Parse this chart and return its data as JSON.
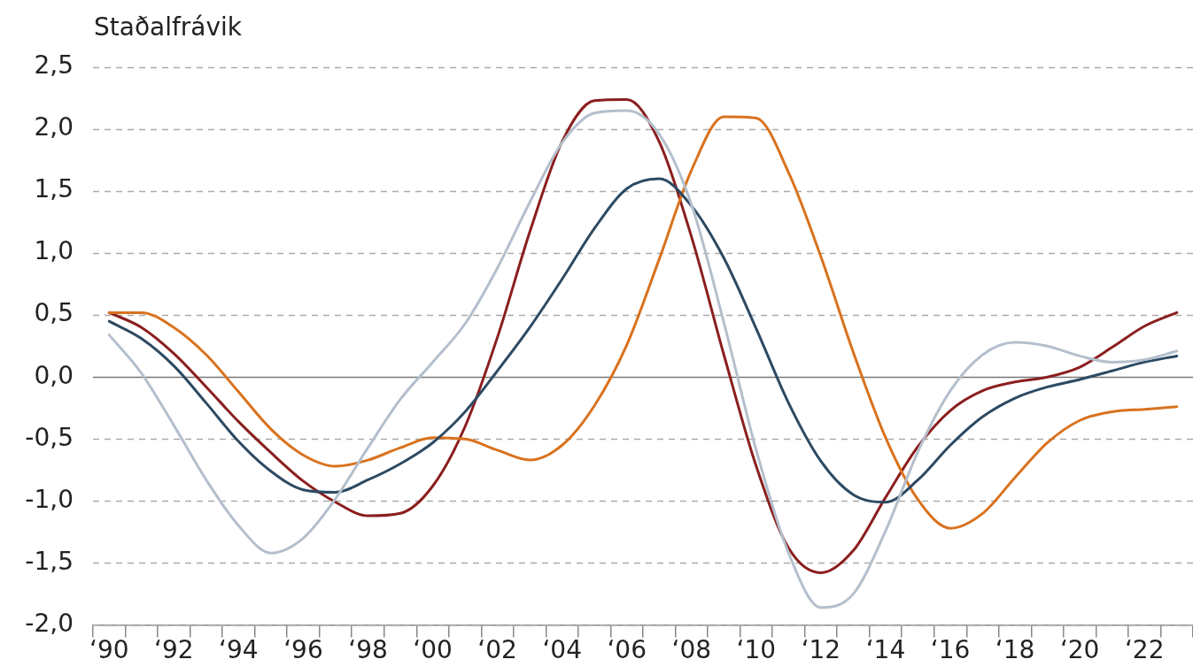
{
  "chart_data": {
    "type": "line",
    "ylabel": "Staðalfrávik",
    "categories": [
      "‘90",
      null,
      "‘92",
      null,
      "‘94",
      null,
      "‘96",
      null,
      "‘98",
      null,
      "‘00",
      null,
      "‘02",
      null,
      "‘04",
      null,
      "‘06",
      null,
      "‘08",
      null,
      "‘10",
      null,
      "‘12",
      null,
      "‘14",
      null,
      "‘16",
      null,
      "‘18",
      null,
      "‘20",
      null,
      "‘22",
      null
    ],
    "series": [
      {
        "color": "#b4bfcc",
        "values": [
          0.34,
          0.03,
          -0.39,
          -0.83,
          -1.2,
          -1.42,
          -1.3,
          -0.98,
          -0.57,
          -0.18,
          0.12,
          0.43,
          0.88,
          1.41,
          1.89,
          2.13,
          2.15,
          1.96,
          1.39,
          0.44,
          -0.59,
          -1.42,
          -1.86,
          -1.75,
          -1.24,
          -0.6,
          -0.11,
          0.18,
          0.28,
          0.25,
          0.17,
          0.12,
          0.14,
          0.21
        ]
      },
      {
        "color": "#2c4a63",
        "values": [
          0.45,
          0.31,
          0.09,
          -0.21,
          -0.52,
          -0.76,
          -0.91,
          -0.93,
          -0.83,
          -0.7,
          -0.53,
          -0.28,
          0.05,
          0.4,
          0.79,
          1.2,
          1.52,
          1.6,
          1.38,
          0.96,
          0.39,
          -0.21,
          -0.68,
          -0.95,
          -1.01,
          -0.83,
          -0.55,
          -0.32,
          -0.17,
          -0.08,
          -0.02,
          0.05,
          0.12,
          0.17
        ]
      },
      {
        "color": "#d9721e",
        "values": [
          0.52,
          0.52,
          0.4,
          0.18,
          -0.12,
          -0.42,
          -0.63,
          -0.72,
          -0.67,
          -0.57,
          -0.49,
          -0.5,
          -0.59,
          -0.67,
          -0.55,
          -0.23,
          0.26,
          0.95,
          1.67,
          2.1,
          2.09,
          1.65,
          0.97,
          0.2,
          -0.49,
          -0.99,
          -1.22,
          -1.1,
          -0.81,
          -0.53,
          -0.35,
          -0.28,
          -0.26,
          -0.24
        ]
      },
      {
        "color": "#8b1e1e",
        "values": [
          0.52,
          0.4,
          0.19,
          -0.08,
          -0.36,
          -0.61,
          -0.84,
          -1.01,
          -1.12,
          -1.1,
          -0.88,
          -0.4,
          0.32,
          1.17,
          1.9,
          2.23,
          2.24,
          1.9,
          1.13,
          0.18,
          -0.72,
          -1.38,
          -1.58,
          -1.4,
          -0.97,
          -0.56,
          -0.27,
          -0.11,
          -0.04,
          0.0,
          0.08,
          0.24,
          0.41,
          0.52
        ]
      }
    ],
    "ylim": [
      -2.0,
      2.5
    ],
    "yticks": [
      {
        "value": -2.0,
        "label": "-2,0"
      },
      {
        "value": -1.5,
        "label": "-1,5"
      },
      {
        "value": -1.0,
        "label": "-1,0"
      },
      {
        "value": -0.5,
        "label": "-0,5"
      },
      {
        "value": 0,
        "label": "0,0"
      },
      {
        "value": 0.5,
        "label": "0,5"
      },
      {
        "value": 1.0,
        "label": "1,0"
      },
      {
        "value": 1.5,
        "label": "1,5"
      },
      {
        "value": 2.0,
        "label": "2,0"
      },
      {
        "value": 2.5,
        "label": "2,5"
      }
    ],
    "grid": "y",
    "marker": "none",
    "line_style": "solid"
  }
}
